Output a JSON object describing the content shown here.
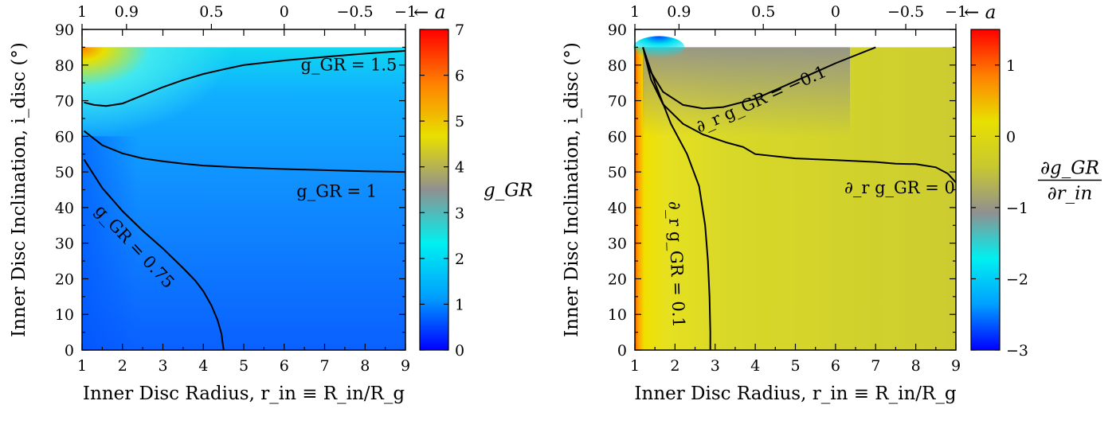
{
  "chart_data": [
    {
      "type": "heatmap",
      "title": "",
      "xlabel": "Inner Disc Radius, r_in ≡ R_in/R_g",
      "ylabel": "Inner Disc Inclination, i_disc (°)",
      "xlim": [
        1,
        9
      ],
      "ylim": [
        0,
        90
      ],
      "x_ticks": [
        1,
        2,
        3,
        4,
        5,
        6,
        7,
        8,
        9
      ],
      "y_ticks": [
        0,
        10,
        20,
        30,
        40,
        50,
        60,
        70,
        80,
        90
      ],
      "top_axis": {
        "label": "← a",
        "ticks": [
          {
            "r": 1.0,
            "label": "1"
          },
          {
            "r": 2.1,
            "label": "0.9"
          },
          {
            "r": 4.2,
            "label": "0.5"
          },
          {
            "r": 6.0,
            "label": "0"
          },
          {
            "r": 7.75,
            "label": "−0.5"
          },
          {
            "r": 9.0,
            "label": "−1"
          }
        ]
      },
      "colorbar": {
        "label": "g_GR",
        "range": [
          0,
          7
        ],
        "ticks": [
          0,
          1,
          2,
          3,
          4,
          5,
          6,
          7
        ],
        "colormap": [
          "#0000ff",
          "#00a0ff",
          "#00f0f0",
          "#909090",
          "#e8e000",
          "#ff8000",
          "#ff0000"
        ]
      },
      "contours": [
        {
          "label": "g_GR = 1.5",
          "level": 1.5,
          "points": [
            [
              1.05,
              69.5
            ],
            [
              1.3,
              68.8
            ],
            [
              1.6,
              68.5
            ],
            [
              2.0,
              69.2
            ],
            [
              2.5,
              71.5
            ],
            [
              3.0,
              73.8
            ],
            [
              3.5,
              75.8
            ],
            [
              4.0,
              77.5
            ],
            [
              4.5,
              78.8
            ],
            [
              5.0,
              80
            ],
            [
              6.0,
              81.3
            ],
            [
              7.0,
              82.3
            ],
            [
              8.0,
              83.2
            ],
            [
              9.0,
              84
            ]
          ]
        },
        {
          "label": "g_GR = 1",
          "level": 1.0,
          "points": [
            [
              1.05,
              61.5
            ],
            [
              1.5,
              57.5
            ],
            [
              2.0,
              55.2
            ],
            [
              2.5,
              53.8
            ],
            [
              3.0,
              53.0
            ],
            [
              3.5,
              52.3
            ],
            [
              4.0,
              51.8
            ],
            [
              5.0,
              51.2
            ],
            [
              6.0,
              50.8
            ],
            [
              7.0,
              50.5
            ],
            [
              8.0,
              50.2
            ],
            [
              9.0,
              50
            ]
          ]
        },
        {
          "label": "g_GR = 0.75",
          "level": 0.75,
          "points": [
            [
              1.05,
              53.5
            ],
            [
              1.5,
              45.5
            ],
            [
              2.0,
              39
            ],
            [
              2.5,
              33.5
            ],
            [
              3.0,
              28.5
            ],
            [
              3.5,
              23
            ],
            [
              3.8,
              19.5
            ],
            [
              4.0,
              16.5
            ],
            [
              4.2,
              12.5
            ],
            [
              4.35,
              8.5
            ],
            [
              4.45,
              4.5
            ],
            [
              4.5,
              0
            ]
          ]
        }
      ]
    },
    {
      "type": "heatmap",
      "title": "",
      "xlabel": "Inner Disc Radius, r_in ≡ R_in/R_g",
      "ylabel": "Inner Disc Inclination, i_disc (°)",
      "xlim": [
        1,
        9
      ],
      "ylim": [
        0,
        90
      ],
      "x_ticks": [
        1,
        2,
        3,
        4,
        5,
        6,
        7,
        8,
        9
      ],
      "y_ticks": [
        0,
        10,
        20,
        30,
        40,
        50,
        60,
        70,
        80,
        90
      ],
      "top_axis": {
        "label": "← a",
        "ticks": [
          {
            "r": 1.0,
            "label": "1"
          },
          {
            "r": 2.1,
            "label": "0.9"
          },
          {
            "r": 4.2,
            "label": "0.5"
          },
          {
            "r": 6.0,
            "label": "0"
          },
          {
            "r": 7.75,
            "label": "−0.5"
          },
          {
            "r": 9.0,
            "label": "−1"
          }
        ]
      },
      "colorbar": {
        "label_numerator": "∂g_GR",
        "label_denominator": "∂r_in",
        "range": [
          -3,
          1.5
        ],
        "ticks": [
          -3,
          -2,
          -1,
          0,
          1
        ],
        "colormap": [
          "#0000ff",
          "#00a0ff",
          "#00f0f0",
          "#909090",
          "#c8c830",
          "#e8e000",
          "#ff8000",
          "#ff0000"
        ]
      },
      "contours": [
        {
          "label": "∂_r g_GR = −0.1",
          "level": -0.1,
          "points": [
            [
              1.2,
              85
            ],
            [
              1.4,
              78
            ],
            [
              1.7,
              72.5
            ],
            [
              2.2,
              68.8
            ],
            [
              2.7,
              67.8
            ],
            [
              3.2,
              68.2
            ],
            [
              4.0,
              70.5
            ],
            [
              5.0,
              75.5
            ],
            [
              6.0,
              80.5
            ],
            [
              7.0,
              85
            ]
          ]
        },
        {
          "label": "∂_r g_GR = 0",
          "level": 0.0,
          "points": [
            [
              1.2,
              85
            ],
            [
              1.4,
              76
            ],
            [
              1.7,
              69
            ],
            [
              2.2,
              63.5
            ],
            [
              2.7,
              60.5
            ],
            [
              3.3,
              58.2
            ],
            [
              3.7,
              57
            ],
            [
              4.0,
              55
            ],
            [
              5.0,
              53.8
            ],
            [
              6.0,
              53.3
            ],
            [
              7.0,
              52.8
            ],
            [
              7.5,
              52.3
            ],
            [
              8.0,
              52.2
            ],
            [
              8.5,
              51.3
            ],
            [
              8.8,
              49.5
            ],
            [
              9.0,
              47
            ]
          ]
        },
        {
          "label": "∂_r g_GR = 0.1",
          "level": 0.1,
          "points": [
            [
              1.2,
              85
            ],
            [
              1.5,
              75
            ],
            [
              1.9,
              63.5
            ],
            [
              2.3,
              55
            ],
            [
              2.6,
              46
            ],
            [
              2.75,
              35
            ],
            [
              2.82,
              25
            ],
            [
              2.86,
              15
            ],
            [
              2.88,
              5
            ],
            [
              2.88,
              0
            ]
          ]
        }
      ]
    }
  ]
}
